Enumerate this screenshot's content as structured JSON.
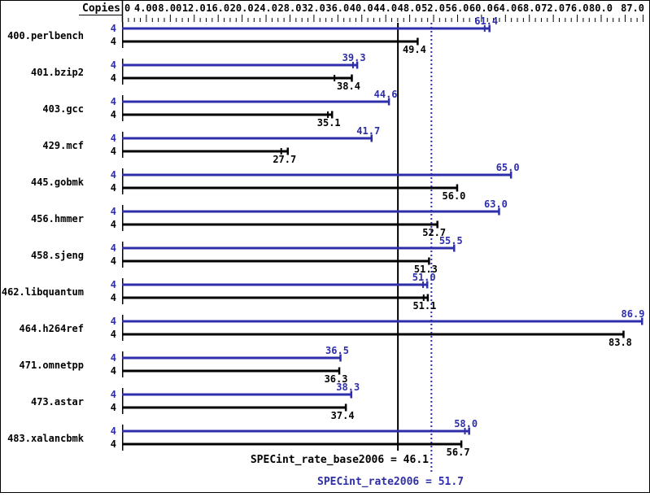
{
  "chart_data": {
    "type": "bar",
    "orientation": "horizontal",
    "copies_header": "Copies",
    "colors": {
      "peak": "#2e2eaa",
      "base": "#000000",
      "background": "#ffffff"
    },
    "x_axis": {
      "min": 0,
      "max": 87,
      "minor_tick_step": 1,
      "major_ticks": [
        0,
        4,
        8,
        12,
        16,
        20,
        24,
        28,
        32,
        36,
        40,
        44,
        48,
        52,
        56,
        60,
        64,
        68,
        72,
        76,
        80,
        87
      ],
      "major_tick_labels": [
        "0",
        "4.00",
        "8.00",
        "12.0",
        "16.0",
        "20.0",
        "24.0",
        "28.0",
        "32.0",
        "36.0",
        "40.0",
        "44.0",
        "48.0",
        "52.0",
        "56.0",
        "60.0",
        "64.0",
        "68.0",
        "72.0",
        "76.0",
        "80.0",
        "87.0"
      ],
      "grid": false
    },
    "series": [
      {
        "name": "SPECint_rate2006 (peak)",
        "color": "#2e2eaa"
      },
      {
        "name": "SPECint_rate_base2006 (base)",
        "color": "#000000"
      }
    ],
    "benchmarks": [
      {
        "name": "400.perlbench",
        "copies_peak": "4",
        "copies_base": "4",
        "peak": 61.4,
        "peak_label": "61.4",
        "base": 49.4,
        "base_label": "49.4",
        "peak_marks": [
          60.6
        ],
        "base_marks": []
      },
      {
        "name": "401.bzip2",
        "copies_peak": "4",
        "copies_base": "4",
        "peak": 39.3,
        "peak_label": "39.3",
        "base": 38.4,
        "base_label": "38.4",
        "peak_marks": [
          38.6
        ],
        "base_marks": [
          35.5
        ]
      },
      {
        "name": "403.gcc",
        "copies_peak": "4",
        "copies_base": "4",
        "peak": 44.6,
        "peak_label": "44.6",
        "base": 35.1,
        "base_label": "35.1",
        "peak_marks": [],
        "base_marks": [
          34.4
        ]
      },
      {
        "name": "429.mcf",
        "copies_peak": "4",
        "copies_base": "4",
        "peak": 41.7,
        "peak_label": "41.7",
        "base": 27.7,
        "base_label": "27.7",
        "peak_marks": [],
        "base_marks": [
          26.6
        ]
      },
      {
        "name": "445.gobmk",
        "copies_peak": "4",
        "copies_base": "4",
        "peak": 65.0,
        "peak_label": "65.0",
        "base": 56.0,
        "base_label": "56.0",
        "peak_marks": [],
        "base_marks": []
      },
      {
        "name": "456.hmmer",
        "copies_peak": "4",
        "copies_base": "4",
        "peak": 63.0,
        "peak_label": "63.0",
        "base": 52.7,
        "base_label": "52.7",
        "peak_marks": [],
        "base_marks": []
      },
      {
        "name": "458.sjeng",
        "copies_peak": "4",
        "copies_base": "4",
        "peak": 55.5,
        "peak_label": "55.5",
        "base": 51.3,
        "base_label": "51.3",
        "peak_marks": [],
        "base_marks": []
      },
      {
        "name": "462.libquantum",
        "copies_peak": "4",
        "copies_base": "4",
        "peak": 51.0,
        "peak_label": "51.0",
        "base": 51.1,
        "base_label": "51.1",
        "peak_marks": [
          50.3
        ],
        "base_marks": [
          50.4
        ]
      },
      {
        "name": "464.h264ref",
        "copies_peak": "4",
        "copies_base": "4",
        "peak": 86.9,
        "peak_label": "86.9",
        "base": 83.8,
        "base_label": "83.8",
        "peak_marks": [],
        "base_marks": []
      },
      {
        "name": "471.omnetpp",
        "copies_peak": "4",
        "copies_base": "4",
        "peak": 36.5,
        "peak_label": "36.5",
        "base": 36.3,
        "base_label": "36.3",
        "peak_marks": [],
        "base_marks": []
      },
      {
        "name": "473.astar",
        "copies_peak": "4",
        "copies_base": "4",
        "peak": 38.3,
        "peak_label": "38.3",
        "base": 37.4,
        "base_label": "37.4",
        "peak_marks": [],
        "base_marks": []
      },
      {
        "name": "483.xalancbmk",
        "copies_peak": "4",
        "copies_base": "4",
        "peak": 58.0,
        "peak_label": "58.0",
        "base": 56.7,
        "base_label": "56.7",
        "peak_marks": [
          57.3
        ],
        "base_marks": []
      }
    ],
    "reference_lines": [
      {
        "name": "SPECint_rate_base2006",
        "value": 46.1,
        "label": "SPECint_rate_base2006 = 46.1",
        "style": "solid",
        "color": "#000000"
      },
      {
        "name": "SPECint_rate2006",
        "value": 51.7,
        "label": "SPECint_rate2006 = 51.7",
        "style": "dotted",
        "color": "#2e2eaa"
      }
    ]
  }
}
